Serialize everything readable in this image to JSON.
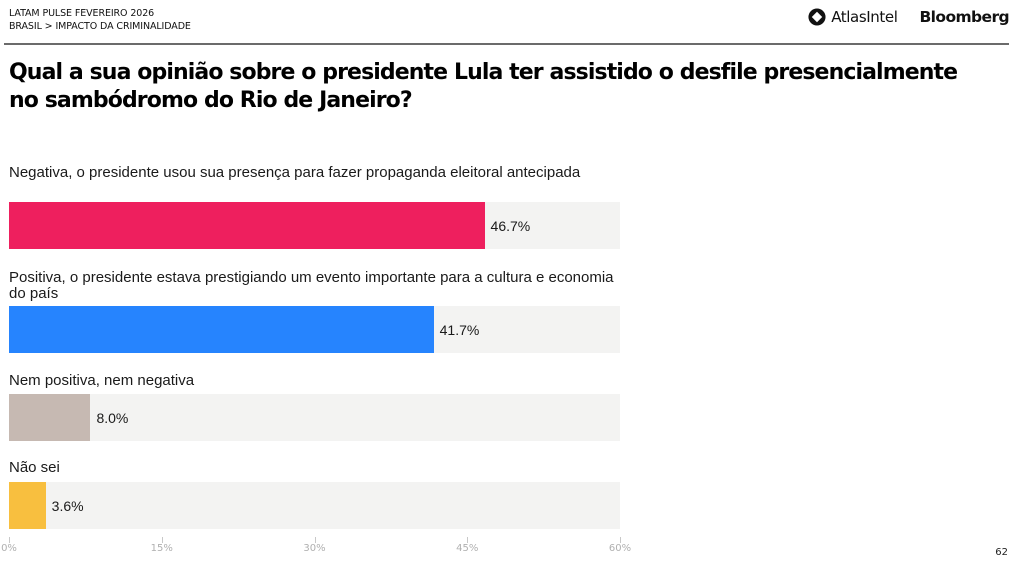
{
  "header": {
    "line1": "LATAM PULSE FEVEREIRO 2026",
    "line2": "BRASIL > IMPACTO DA CRIMINALIDADE",
    "logos": {
      "atlas_icon": "diamond-ring-icon",
      "atlas_label": "AtlasIntel",
      "bloomberg_label": "Bloomberg"
    }
  },
  "page_number": "62",
  "chart_data": {
    "type": "bar",
    "orientation": "horizontal",
    "title": "Qual a sua opinião sobre o presidente Lula ter assistido o desfile presencialmente no sambódromo do Rio de Janeiro?",
    "xlabel": "",
    "ylabel": "",
    "xlim": [
      0,
      60
    ],
    "x_ticks": [
      0,
      15,
      30,
      45,
      60
    ],
    "x_tick_labels": [
      "0%",
      "15%",
      "30%",
      "45%",
      "60%"
    ],
    "grid": false,
    "legend": "none",
    "categories": [
      "Negativa, o presidente usou sua presença para fazer propaganda eleitoral antecipada",
      "Positiva, o presidente estava prestigiando um evento importante para a cultura e economia do país",
      "Nem positiva, nem negativa",
      "Não sei"
    ],
    "values": [
      46.7,
      41.7,
      8.0,
      3.6
    ],
    "value_labels": [
      "46.7%",
      "41.7%",
      "8.0%",
      "3.6%"
    ],
    "colors": [
      "#ee1f5e",
      "#2684fe",
      "#c6b9b2",
      "#f8bf3f"
    ],
    "track_color": "#f3f3f2"
  }
}
